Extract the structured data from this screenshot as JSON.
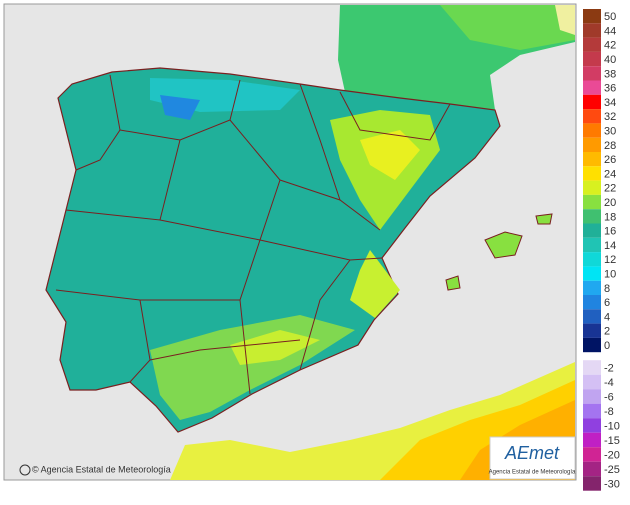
{
  "legend": {
    "entries": [
      {
        "label": 50,
        "color": "#8b3a12"
      },
      {
        "label": 44,
        "color": "#a03a2a"
      },
      {
        "label": 42,
        "color": "#b43a3a"
      },
      {
        "label": 40,
        "color": "#c43a4c"
      },
      {
        "label": 38,
        "color": "#d23c64"
      },
      {
        "label": 36,
        "color": "#ea4a96"
      },
      {
        "label": 34,
        "color": "#ff0000"
      },
      {
        "label": 32,
        "color": "#ff4a10"
      },
      {
        "label": 30,
        "color": "#ff7a00"
      },
      {
        "label": 28,
        "color": "#ff9a00"
      },
      {
        "label": 26,
        "color": "#ffba00"
      },
      {
        "label": 24,
        "color": "#ffe000"
      },
      {
        "label": 22,
        "color": "#d8f020"
      },
      {
        "label": 20,
        "color": "#88e040"
      },
      {
        "label": 18,
        "color": "#40c070"
      },
      {
        "label": 16,
        "color": "#20b098"
      },
      {
        "label": 14,
        "color": "#20c4b4"
      },
      {
        "label": 12,
        "color": "#10d8d8"
      },
      {
        "label": 10,
        "color": "#00e4f4"
      },
      {
        "label": 8,
        "color": "#20a8f0"
      },
      {
        "label": 6,
        "color": "#2084e0"
      },
      {
        "label": 4,
        "color": "#2060c0"
      },
      {
        "label": 2,
        "color": "#183494"
      },
      {
        "label": 0,
        "color": "#001464"
      },
      {
        "label": -2,
        "color": "#e4d8f4"
      },
      {
        "label": -4,
        "color": "#d4c0f4"
      },
      {
        "label": -6,
        "color": "#c0a4f0"
      },
      {
        "label": -8,
        "color": "#a474f0"
      },
      {
        "label": -10,
        "color": "#9040e0"
      },
      {
        "label": -15,
        "color": "#c020c4"
      },
      {
        "label": -20,
        "color": "#d02494"
      },
      {
        "label": -25,
        "color": "#a42484"
      },
      {
        "label": -30,
        "color": "#84246c"
      }
    ]
  },
  "credit": "© Agencia Estatal de Meteorología",
  "logo": {
    "name": "AEmet",
    "subtitle": "Agencia Estatal de Meteorología"
  }
}
